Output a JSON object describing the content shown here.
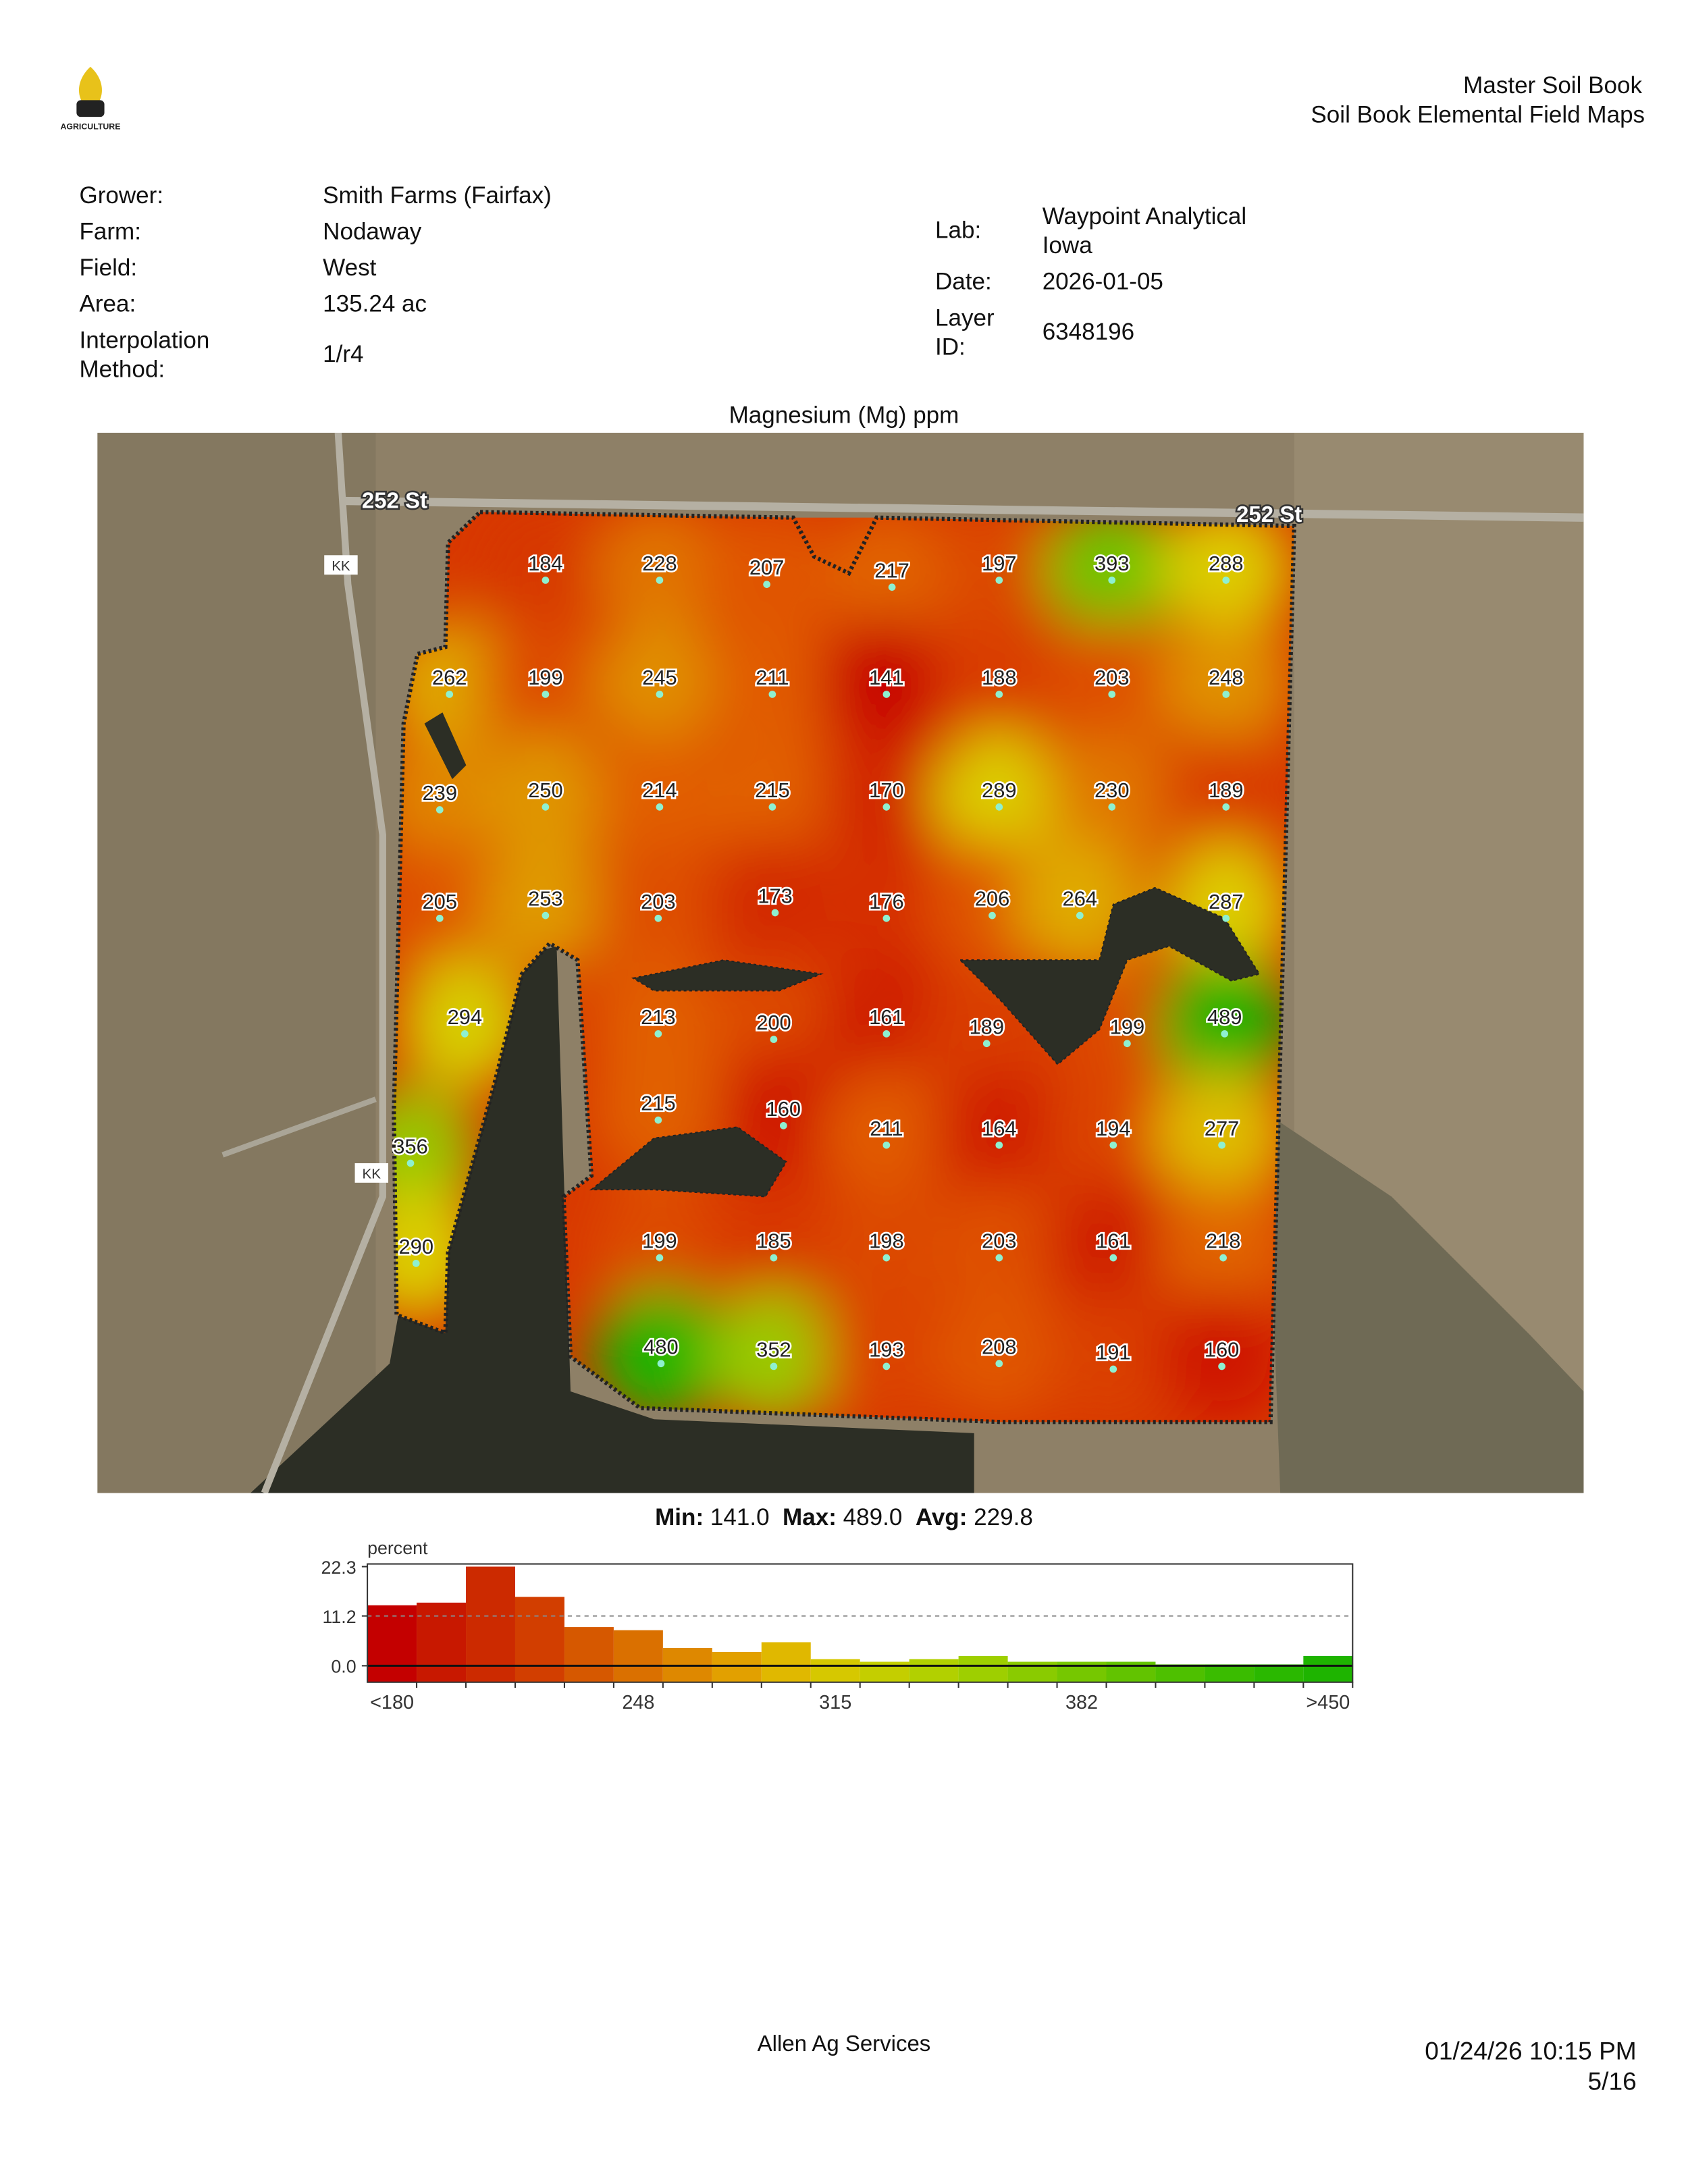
{
  "header": {
    "logo_text": "AGRICULTURE",
    "title": "Master Soil Book",
    "subtitle": "Soil Book Elemental Field Maps"
  },
  "info": {
    "left": [
      [
        "Grower:",
        "Smith Farms (Fairfax)"
      ],
      [
        "Farm:",
        "Nodaway"
      ],
      [
        "Field:",
        "West"
      ],
      [
        "Area:",
        "135.24 ac"
      ],
      [
        "Interpolation Method:",
        "1/r4"
      ]
    ],
    "right": [
      [
        "Lab:",
        "Waypoint Analytical Iowa"
      ],
      [
        "Date:",
        "2026-01-05"
      ],
      [
        "Layer ID:",
        "6348196"
      ]
    ]
  },
  "map": {
    "title": "Magnesium (Mg) ppm",
    "roads": [
      "252 St",
      "252 St",
      "KK",
      "KK"
    ],
    "samples": [
      184,
      228,
      207,
      217,
      197,
      393,
      288,
      262,
      199,
      245,
      211,
      141,
      188,
      203,
      248,
      239,
      250,
      214,
      215,
      170,
      289,
      230,
      189,
      205,
      253,
      203,
      173,
      176,
      206,
      264,
      287,
      294,
      213,
      200,
      161,
      189,
      199,
      489,
      215,
      160,
      211,
      164,
      194,
      277,
      356,
      290,
      199,
      185,
      198,
      203,
      161,
      218,
      480,
      352,
      193,
      208,
      191,
      160
    ]
  },
  "stats": {
    "min_label": "Min:",
    "min": "141.0",
    "max_label": "Max:",
    "max": "489.0",
    "avg_label": "Avg:",
    "avg": "229.8"
  },
  "chart_data": {
    "type": "bar",
    "y_label": "percent",
    "categories": [
      "<180",
      null,
      null,
      null,
      null,
      "248",
      null,
      null,
      null,
      "315",
      null,
      null,
      null,
      null,
      "382",
      null,
      null,
      null,
      null,
      ">450"
    ],
    "values": [
      13.6,
      14.2,
      22.3,
      15.5,
      8.7,
      8.0,
      4.0,
      3.1,
      5.3,
      1.5,
      0.9,
      1.5,
      2.2,
      0.9,
      0.9,
      0.9,
      0.3,
      0.3,
      0.3,
      2.2
    ],
    "colors": [
      "#c40000",
      "#c81800",
      "#cc2a00",
      "#d23e00",
      "#d65800",
      "#da7000",
      "#de8800",
      "#e2a000",
      "#e0b800",
      "#d6c800",
      "#c4ce00",
      "#b2d000",
      "#9ecf00",
      "#8acb00",
      "#76c700",
      "#62c300",
      "#4ec000",
      "#3abc00",
      "#2ab800",
      "#1eb400"
    ],
    "ylim": [
      -3.7,
      22.9
    ],
    "yticks": [
      22.3,
      11.2,
      {
        "value": 0,
        "label": "0.0"
      }
    ],
    "grid": true
  },
  "footer": {
    "company": "Allen Ag Services",
    "timestamp": "01/24/26 10:15 PM",
    "page": "5/16"
  }
}
